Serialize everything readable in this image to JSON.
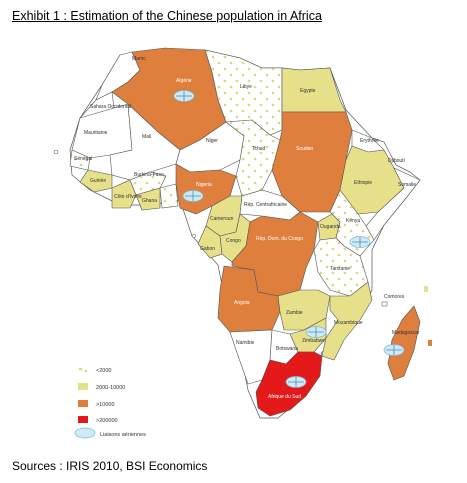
{
  "title": "Exhibit 1 : Estimation of the Chinese  population in Africa",
  "source": "Sources : IRIS 2010, BSI Economics",
  "colors": {
    "lt2000": "#ffffff",
    "dots": "#d9dc7a",
    "c2000_10000": "#e6e08a",
    "gt10000": "#de7f3d",
    "gt200000": "#e41a1a",
    "border": "#555555"
  },
  "legend": [
    {
      "key": "lt2000",
      "label": "<2000"
    },
    {
      "key": "c2000_10000",
      "label": "2000-10000"
    },
    {
      "key": "gt10000",
      "label": ">10000"
    },
    {
      "key": "gt200000",
      "label": ">200000"
    },
    {
      "key": "air",
      "label": "Liaisons aériennes"
    }
  ],
  "countries": {
    "maroc": "Maroc",
    "algerie": "Algérie",
    "libye": "Libye",
    "egypte": "Egypte",
    "mauritanie": "Mauritanie",
    "mali": "Mali",
    "niger": "Niger",
    "tchad": "Tchad",
    "soudan": "Soudan",
    "erythree": "Erythrée",
    "djibouti": "Djibouti",
    "somalie": "Somalie",
    "ethiopie": "Ethiopie",
    "senegal": "Sénégal",
    "guinee": "Guinée",
    "burkina": "Burkina-Faso",
    "cote_ivoire": "Côte d'Ivoire",
    "ghana": "Ghana",
    "nigeria": "Nigeria",
    "cameroun": "Cameroun",
    "rca": "Rép. Centrafricaine",
    "gabon": "Gabon",
    "congo": "Congo",
    "rdc": "Rép. Dem. du Congo",
    "ouganda": "Ouganda",
    "kenya": "Kenya",
    "tanzanie": "Tanzanie",
    "angola": "Angola",
    "zambie": "Zambie",
    "mozambique": "Mozambique",
    "namibie": "Namibie",
    "botswana": "Botswana",
    "zimbabwe": "Zimbabwe",
    "afrique_sud": "Afrique du Sud",
    "madagascar": "Madagascar",
    "comores": "Comores",
    "sahara": "Sahara Occidental"
  }
}
